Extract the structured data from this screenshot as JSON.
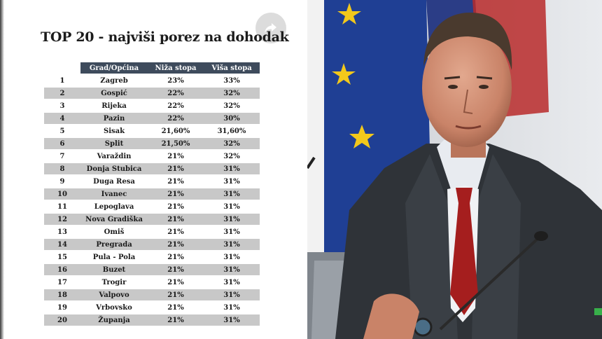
{
  "article": {
    "title": "TOP 20 - najviši porez na dohodak",
    "columns": [
      "",
      "Grad/Općina",
      "Niža stopa",
      "Viša stopa"
    ],
    "rows": [
      {
        "rank": "1",
        "city": "Zagreb",
        "low": "23%",
        "high": "33%"
      },
      {
        "rank": "2",
        "city": "Gospić",
        "low": "22%",
        "high": "32%"
      },
      {
        "rank": "3",
        "city": "Rijeka",
        "low": "22%",
        "high": "32%"
      },
      {
        "rank": "4",
        "city": "Pazin",
        "low": "22%",
        "high": "30%"
      },
      {
        "rank": "5",
        "city": "Sisak",
        "low": "21,60%",
        "high": "31,60%"
      },
      {
        "rank": "6",
        "city": "Split",
        "low": "21,50%",
        "high": "32%"
      },
      {
        "rank": "7",
        "city": "Varaždin",
        "low": "21%",
        "high": "32%"
      },
      {
        "rank": "8",
        "city": "Donja Stubica",
        "low": "21%",
        "high": "31%"
      },
      {
        "rank": "9",
        "city": "Duga Resa",
        "low": "21%",
        "high": "31%"
      },
      {
        "rank": "10",
        "city": "Ivanec",
        "low": "21%",
        "high": "31%"
      },
      {
        "rank": "11",
        "city": "Lepoglava",
        "low": "21%",
        "high": "31%"
      },
      {
        "rank": "12",
        "city": "Nova Gradiška",
        "low": "21%",
        "high": "31%"
      },
      {
        "rank": "13",
        "city": "Omiš",
        "low": "21%",
        "high": "31%"
      },
      {
        "rank": "14",
        "city": "Pregrada",
        "low": "21%",
        "high": "31%"
      },
      {
        "rank": "15",
        "city": "Pula - Pola",
        "low": "21%",
        "high": "31%"
      },
      {
        "rank": "16",
        "city": "Buzet",
        "low": "21%",
        "high": "31%"
      },
      {
        "rank": "17",
        "city": "Trogir",
        "low": "21%",
        "high": "31%"
      },
      {
        "rank": "18",
        "city": "Valpovo",
        "low": "21%",
        "high": "31%"
      },
      {
        "rank": "19",
        "city": "Vrbovsko",
        "low": "21%",
        "high": "31%"
      },
      {
        "rank": "20",
        "city": "Županja",
        "low": "21%",
        "high": "31%"
      }
    ]
  },
  "icons": {
    "share": "share-icon"
  },
  "colors": {
    "header_bg": "#3e4b5c",
    "stripe": "#c8c8c8",
    "tie": "#a51e1e",
    "eu_blue": "#1f3f94",
    "eu_star": "#f2c81b"
  }
}
